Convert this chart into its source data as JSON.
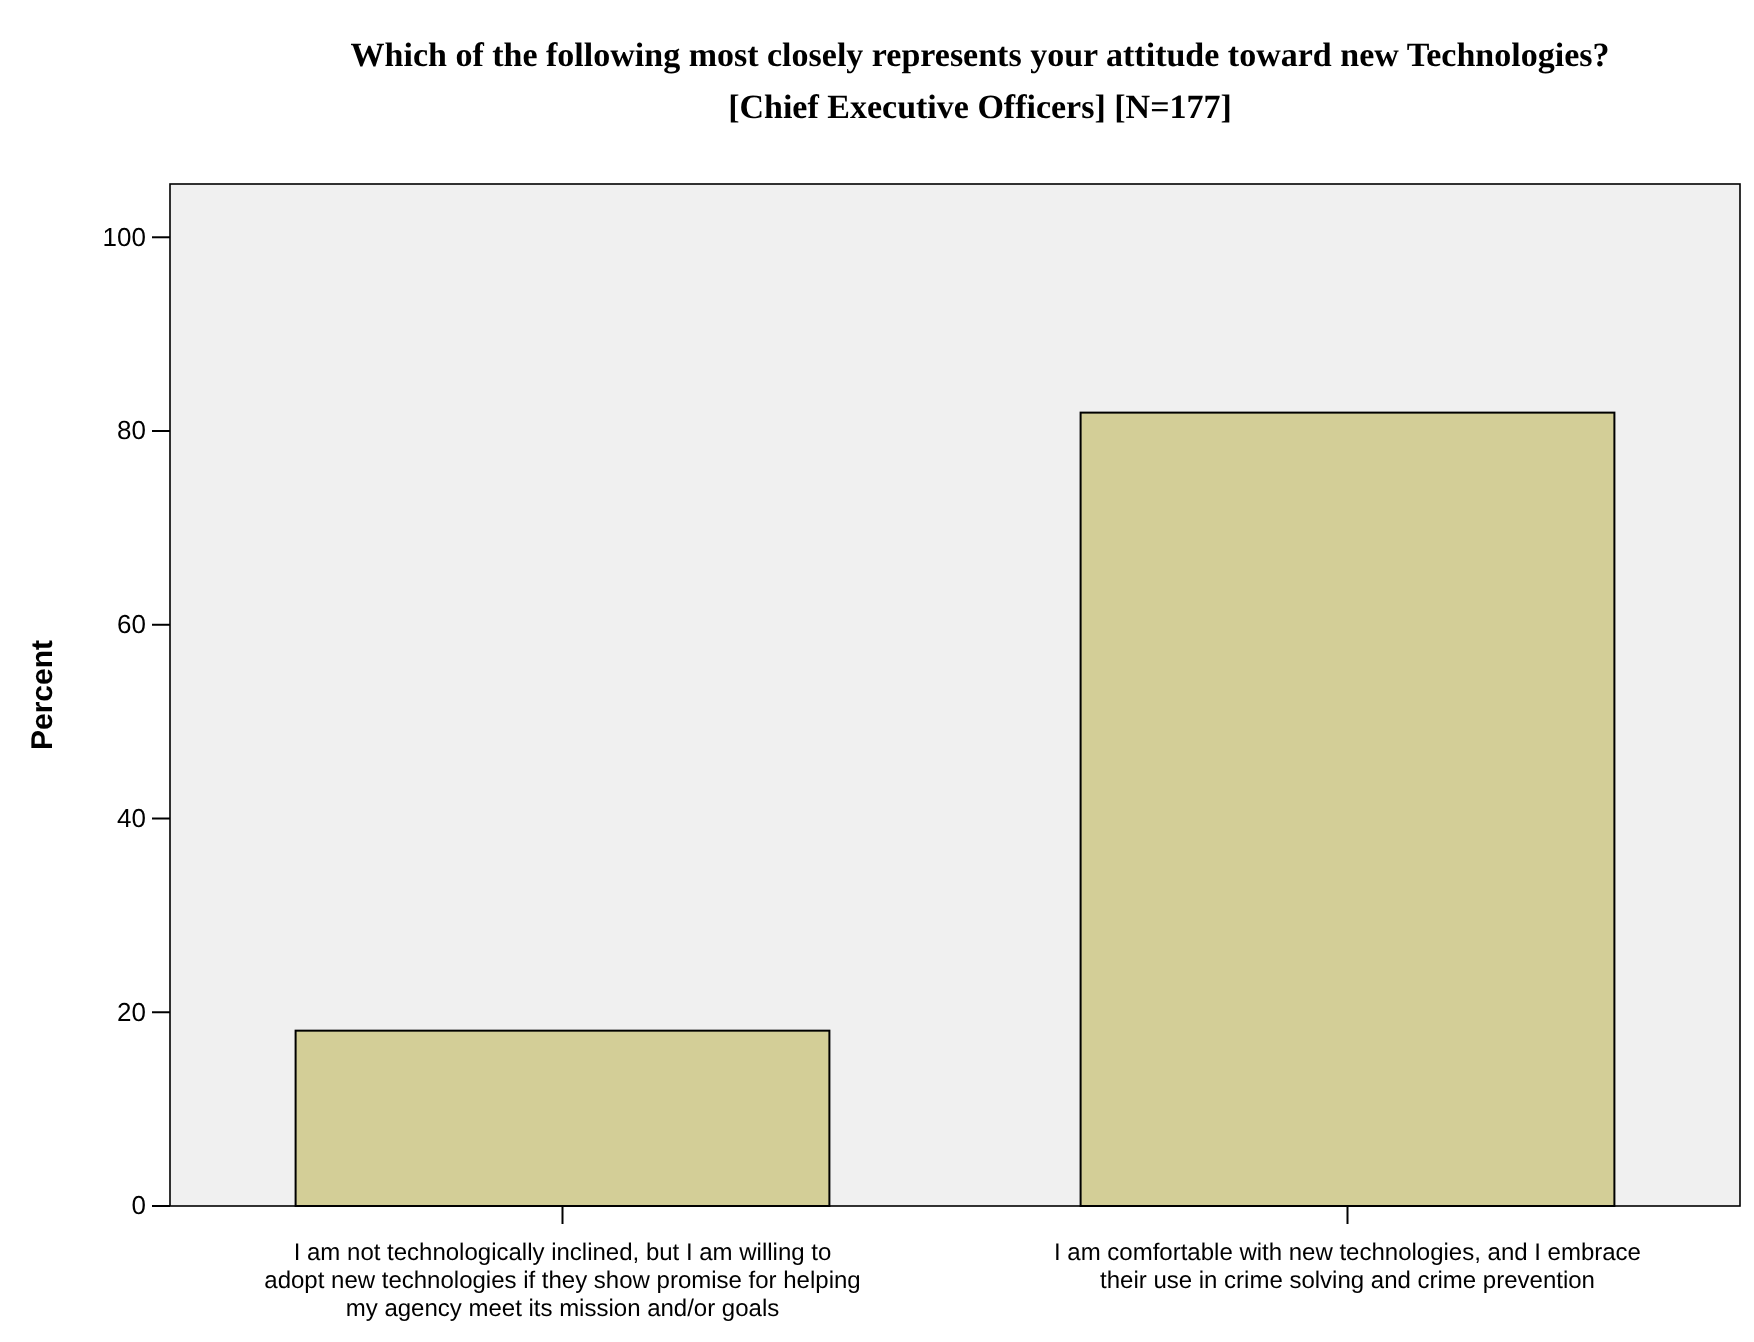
{
  "chart_data": {
    "type": "bar",
    "title": "Which of the following most closely represents your attitude toward new Technologies?  [Chief Executive Officers] [N=177]",
    "ylabel": "Percent",
    "categories": [
      "I am not technologically inclined, but I am willing to adopt new technologies if they show promise for helping my agency meet its mission and/or goals",
      "I am comfortable with new technologies, and I embrace their use in crime solving and crime prevention"
    ],
    "values": [
      18.1,
      81.9
    ],
    "color": "#d3ce97",
    "ylim": [
      0,
      105.5
    ],
    "yticks": [
      0,
      20,
      40,
      60,
      80,
      100
    ],
    "grid": false
  }
}
